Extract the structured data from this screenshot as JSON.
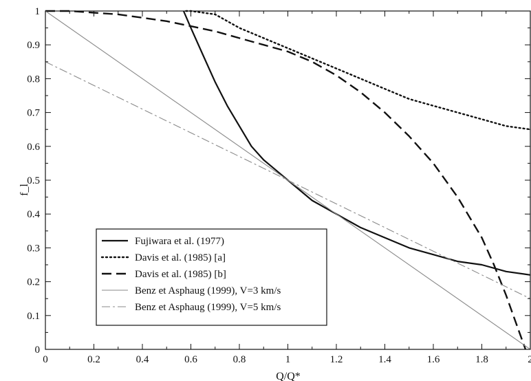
{
  "chart_data": {
    "type": "line",
    "title": "",
    "xlabel": "Q/Q*",
    "ylabel": "f_l",
    "xlim": [
      0,
      2
    ],
    "ylim": [
      0,
      1
    ],
    "xticks": [
      0,
      0.2,
      0.4,
      0.6,
      0.8,
      1,
      1.2,
      1.4,
      1.6,
      1.8,
      2
    ],
    "xtick_labels": [
      "0",
      "0.2",
      "0.4",
      "0.6",
      "0.8",
      "1",
      "1.2",
      "1.4",
      "1.6",
      "1.8",
      "2"
    ],
    "yticks": [
      0,
      0.1,
      0.2,
      0.3,
      0.4,
      0.5,
      0.6,
      0.7,
      0.8,
      0.9,
      1
    ],
    "ytick_labels": [
      "0",
      "0.1",
      "0.2",
      "0.3",
      "0.4",
      "0.5",
      "0.6",
      "0.7",
      "0.8",
      "0.9",
      "1"
    ],
    "grid": false,
    "legend_position": "bottom-left",
    "series": [
      {
        "name": "Fujiwara et al. (1977)",
        "style": "solid",
        "color": "#111111",
        "x": [
          0.57,
          0.6,
          0.65,
          0.7,
          0.75,
          0.8,
          0.85,
          0.9,
          0.95,
          1.0,
          1.1,
          1.2,
          1.3,
          1.4,
          1.5,
          1.6,
          1.7,
          1.8,
          1.9,
          2.0
        ],
        "y": [
          1.0,
          0.95,
          0.87,
          0.79,
          0.72,
          0.66,
          0.6,
          0.56,
          0.53,
          0.5,
          0.44,
          0.4,
          0.36,
          0.33,
          0.3,
          0.28,
          0.26,
          0.25,
          0.23,
          0.22
        ]
      },
      {
        "name": "Davis et al. (1985) [a]",
        "style": "dotted",
        "color": "#111111",
        "x": [
          0.58,
          0.6,
          0.7,
          0.8,
          0.9,
          1.0,
          1.1,
          1.2,
          1.3,
          1.4,
          1.5,
          1.6,
          1.7,
          1.8,
          1.9,
          2.0
        ],
        "y": [
          1.0,
          1.0,
          0.99,
          0.95,
          0.92,
          0.89,
          0.86,
          0.83,
          0.8,
          0.77,
          0.74,
          0.72,
          0.7,
          0.68,
          0.66,
          0.65
        ]
      },
      {
        "name": "Davis et al. (1985) [b]",
        "style": "dashed",
        "color": "#111111",
        "x": [
          0,
          0.1,
          0.2,
          0.3,
          0.4,
          0.5,
          0.6,
          0.7,
          0.8,
          0.9,
          1.0,
          1.1,
          1.2,
          1.3,
          1.4,
          1.5,
          1.6,
          1.7,
          1.8,
          1.85,
          1.9,
          1.93,
          1.96,
          1.98
        ],
        "y": [
          1.0,
          1.0,
          0.995,
          0.99,
          0.98,
          0.97,
          0.955,
          0.94,
          0.92,
          0.9,
          0.88,
          0.85,
          0.81,
          0.76,
          0.7,
          0.63,
          0.55,
          0.45,
          0.33,
          0.25,
          0.16,
          0.1,
          0.04,
          0.0
        ]
      },
      {
        "name": "Benz et Asphaug (1999), V=3 km/s",
        "style": "solid-thin",
        "color": "#8a8a8a",
        "x": [
          0,
          1.0,
          2.0
        ],
        "y": [
          1.0,
          0.5,
          0.0
        ]
      },
      {
        "name": "Benz et Asphaug (1999), V=5 km/s",
        "style": "dashdot",
        "color": "#8a8a8a",
        "x": [
          0,
          1.0,
          2.0
        ],
        "y": [
          0.85,
          0.5,
          0.15
        ]
      }
    ]
  }
}
